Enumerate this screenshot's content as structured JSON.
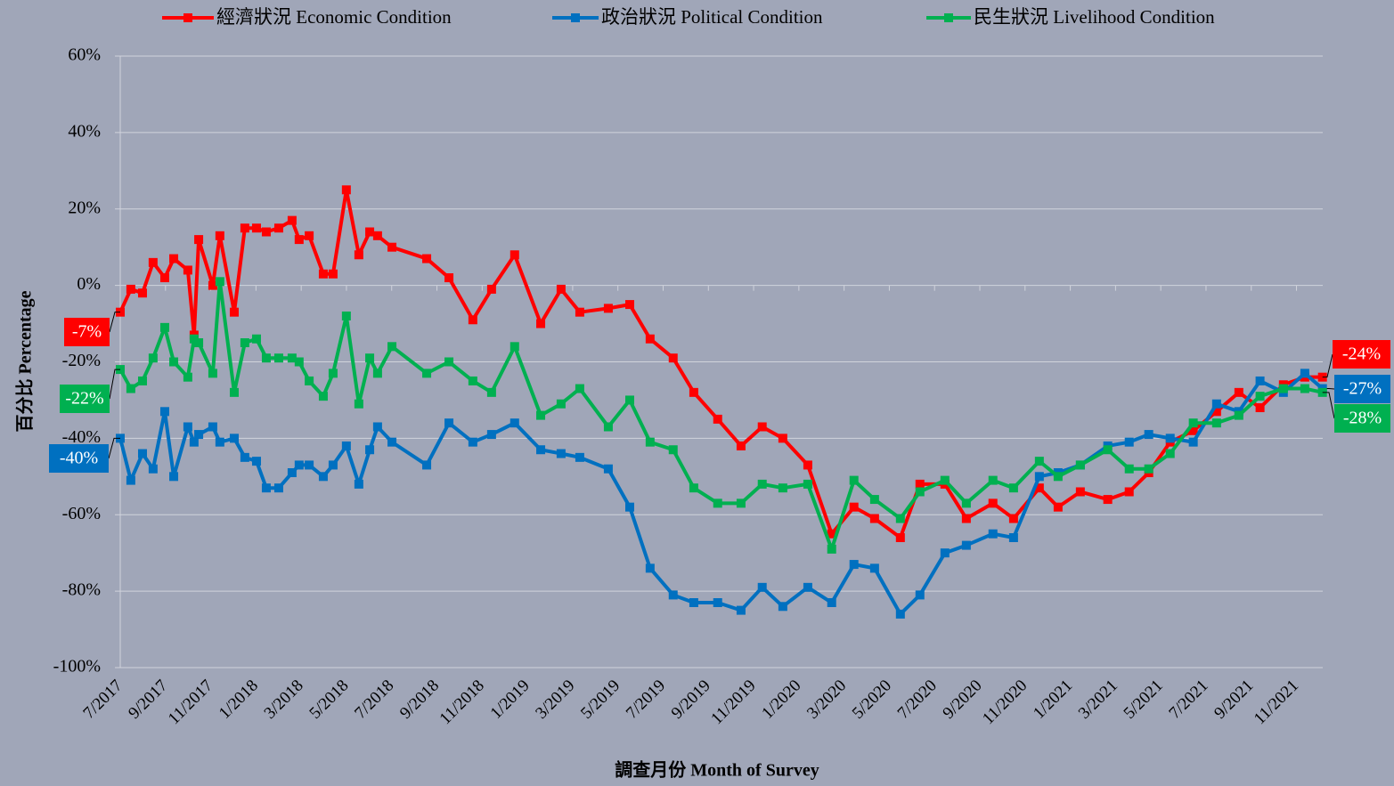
{
  "chart_data": {
    "type": "line",
    "x_label": "調查月份 Month of Survey",
    "y_label": "百分比 Percentage",
    "x": [
      2017.5,
      2017.539,
      2017.582,
      2017.621,
      2017.664,
      2017.697,
      2017.749,
      2017.772,
      2017.789,
      2017.841,
      2017.867,
      2017.92,
      2017.959,
      2018.002,
      2018.038,
      2018.084,
      2018.133,
      2018.159,
      2018.196,
      2018.248,
      2018.284,
      2018.333,
      2018.379,
      2018.419,
      2018.448,
      2018.501,
      2018.629,
      2018.711,
      2018.799,
      2018.868,
      2018.953,
      2019.049,
      2019.124,
      2019.193,
      2019.298,
      2019.377,
      2019.452,
      2019.537,
      2019.613,
      2019.701,
      2019.787,
      2019.865,
      2019.941,
      2020.033,
      2020.121,
      2020.203,
      2020.279,
      2020.374,
      2020.446,
      2020.538,
      2020.617,
      2020.715,
      2020.791,
      2020.886,
      2020.955,
      2021.037,
      2021.138,
      2021.217,
      2021.289,
      2021.368,
      2021.453,
      2021.539,
      2021.621,
      2021.699,
      2021.785,
      2021.864,
      2021.929
    ],
    "xlim": [
      2017.5,
      2021.93
    ],
    "xticks": [
      {
        "value": 2017.5,
        "label": "7/2017"
      },
      {
        "value": 2017.6667,
        "label": "9/2017"
      },
      {
        "value": 2017.8333,
        "label": "11/2017"
      },
      {
        "value": 2018,
        "label": "1/2018"
      },
      {
        "value": 2018.1667,
        "label": "3/2018"
      },
      {
        "value": 2018.3333,
        "label": "5/2018"
      },
      {
        "value": 2018.5,
        "label": "7/2018"
      },
      {
        "value": 2018.6667,
        "label": "9/2018"
      },
      {
        "value": 2018.8333,
        "label": "11/2018"
      },
      {
        "value": 2019,
        "label": "1/2019"
      },
      {
        "value": 2019.1667,
        "label": "3/2019"
      },
      {
        "value": 2019.3333,
        "label": "5/2019"
      },
      {
        "value": 2019.5,
        "label": "7/2019"
      },
      {
        "value": 2019.6667,
        "label": "9/2019"
      },
      {
        "value": 2019.8333,
        "label": "11/2019"
      },
      {
        "value": 2020,
        "label": "1/2020"
      },
      {
        "value": 2020.1667,
        "label": "3/2020"
      },
      {
        "value": 2020.3333,
        "label": "5/2020"
      },
      {
        "value": 2020.5,
        "label": "7/2020"
      },
      {
        "value": 2020.6667,
        "label": "9/2020"
      },
      {
        "value": 2020.8333,
        "label": "11/2020"
      },
      {
        "value": 2021,
        "label": "1/2021"
      },
      {
        "value": 2021.1667,
        "label": "3/2021"
      },
      {
        "value": 2021.3333,
        "label": "5/2021"
      },
      {
        "value": 2021.5,
        "label": "7/2021"
      },
      {
        "value": 2021.6667,
        "label": "9/2021"
      },
      {
        "value": 2021.8333,
        "label": "11/2021"
      }
    ],
    "ylim": [
      -100,
      60
    ],
    "yticks": [
      {
        "value": -100,
        "label": "-100%"
      },
      {
        "value": -80,
        "label": "-80%"
      },
      {
        "value": -60,
        "label": "-60%"
      },
      {
        "value": -40,
        "label": "-40%"
      },
      {
        "value": -20,
        "label": "-20%"
      },
      {
        "value": 0,
        "label": "0%"
      },
      {
        "value": 20,
        "label": "20%"
      },
      {
        "value": 40,
        "label": "40%"
      },
      {
        "value": 60,
        "label": "60%"
      }
    ],
    "grid": true,
    "legend": "top",
    "series": [
      {
        "name": "經濟狀況 Economic Condition",
        "color": "#ff0000",
        "values": [
          -7,
          -1,
          -2,
          6,
          2,
          7,
          4,
          -13,
          12,
          0,
          13,
          -7,
          15,
          15,
          14,
          15,
          17,
          12,
          13,
          3,
          3,
          25,
          8,
          14,
          13,
          10,
          7,
          2,
          -9,
          -1,
          8,
          -10,
          -1,
          -7,
          -6,
          -5,
          -14,
          -19,
          -28,
          -35,
          -42,
          -37,
          -40,
          -47,
          -65,
          -58,
          -61,
          -66,
          -52,
          -52,
          -61,
          -57,
          -61,
          -53,
          -58,
          -54,
          -56,
          -54,
          -49,
          -41,
          -38,
          -33,
          -28,
          -32,
          -26,
          -24,
          -24
        ],
        "value_labels": [
          "-7%",
          null,
          null,
          null,
          null,
          null,
          null,
          null,
          null,
          null,
          null,
          null,
          null,
          null,
          null,
          null,
          null,
          null,
          null,
          null,
          null,
          null,
          null,
          null,
          null,
          null,
          null,
          null,
          null,
          null,
          null,
          null,
          null,
          null,
          null,
          null,
          null,
          null,
          null,
          null,
          null,
          null,
          null,
          null,
          null,
          null,
          null,
          null,
          null,
          null,
          null,
          null,
          null,
          null,
          null,
          null,
          null,
          null,
          null,
          null,
          null,
          null,
          null,
          null,
          null,
          null,
          "-24%"
        ]
      },
      {
        "name": "政治狀況 Political Condition",
        "color": "#0070c0",
        "values": [
          -40,
          -51,
          -44,
          -48,
          -33,
          -50,
          -37,
          -41,
          -39,
          -37,
          -41,
          -40,
          -45,
          -46,
          -53,
          -53,
          -49,
          -47,
          -47,
          -50,
          -47,
          -42,
          -52,
          -43,
          -37,
          -41,
          -47,
          -36,
          -41,
          -39,
          -36,
          -43,
          -44,
          -45,
          -48,
          -58,
          -74,
          -81,
          -83,
          -83,
          -85,
          -79,
          -84,
          -79,
          -83,
          -73,
          -74,
          -86,
          -81,
          -70,
          -68,
          -65,
          -66,
          -50,
          -49,
          -47,
          -42,
          -41,
          -39,
          -40,
          -41,
          -31,
          -33,
          -25,
          -28,
          -23,
          -27
        ],
        "value_labels": [
          "-40%",
          null,
          null,
          null,
          null,
          null,
          null,
          null,
          null,
          null,
          null,
          null,
          null,
          null,
          null,
          null,
          null,
          null,
          null,
          null,
          null,
          null,
          null,
          null,
          null,
          null,
          null,
          null,
          null,
          null,
          null,
          null,
          null,
          null,
          null,
          null,
          null,
          null,
          null,
          null,
          null,
          null,
          null,
          null,
          null,
          null,
          null,
          null,
          null,
          null,
          null,
          null,
          null,
          null,
          null,
          null,
          null,
          null,
          null,
          null,
          null,
          null,
          null,
          null,
          null,
          null,
          "-27%"
        ]
      },
      {
        "name": "民生狀況 Livelihood Condition",
        "color": "#00b050",
        "values": [
          -22,
          -27,
          -25,
          -19,
          -11,
          -20,
          -24,
          -14,
          -15,
          -23,
          1,
          -28,
          -15,
          -14,
          -19,
          -19,
          -19,
          -20,
          -25,
          -29,
          -23,
          -8,
          -31,
          -19,
          -23,
          -16,
          -23,
          -20,
          -25,
          -28,
          -16,
          -34,
          -31,
          -27,
          -37,
          -30,
          -41,
          -43,
          -53,
          -57,
          -57,
          -52,
          -53,
          -52,
          -69,
          -51,
          -56,
          -61,
          -54,
          -51,
          -57,
          -51,
          -53,
          -46,
          -50,
          -47,
          -43,
          -48,
          -48,
          -44,
          -36,
          -36,
          -34,
          -29,
          -27,
          -27,
          -28
        ],
        "value_labels": [
          "-22%",
          null,
          null,
          null,
          null,
          null,
          null,
          null,
          null,
          null,
          null,
          null,
          null,
          null,
          null,
          null,
          null,
          null,
          null,
          null,
          null,
          null,
          null,
          null,
          null,
          null,
          null,
          null,
          null,
          null,
          null,
          null,
          null,
          null,
          null,
          null,
          null,
          null,
          null,
          null,
          null,
          null,
          null,
          null,
          null,
          null,
          null,
          null,
          null,
          null,
          null,
          null,
          null,
          null,
          null,
          null,
          null,
          null,
          null,
          null,
          null,
          null,
          null,
          null,
          null,
          null,
          "-28%"
        ]
      }
    ]
  }
}
